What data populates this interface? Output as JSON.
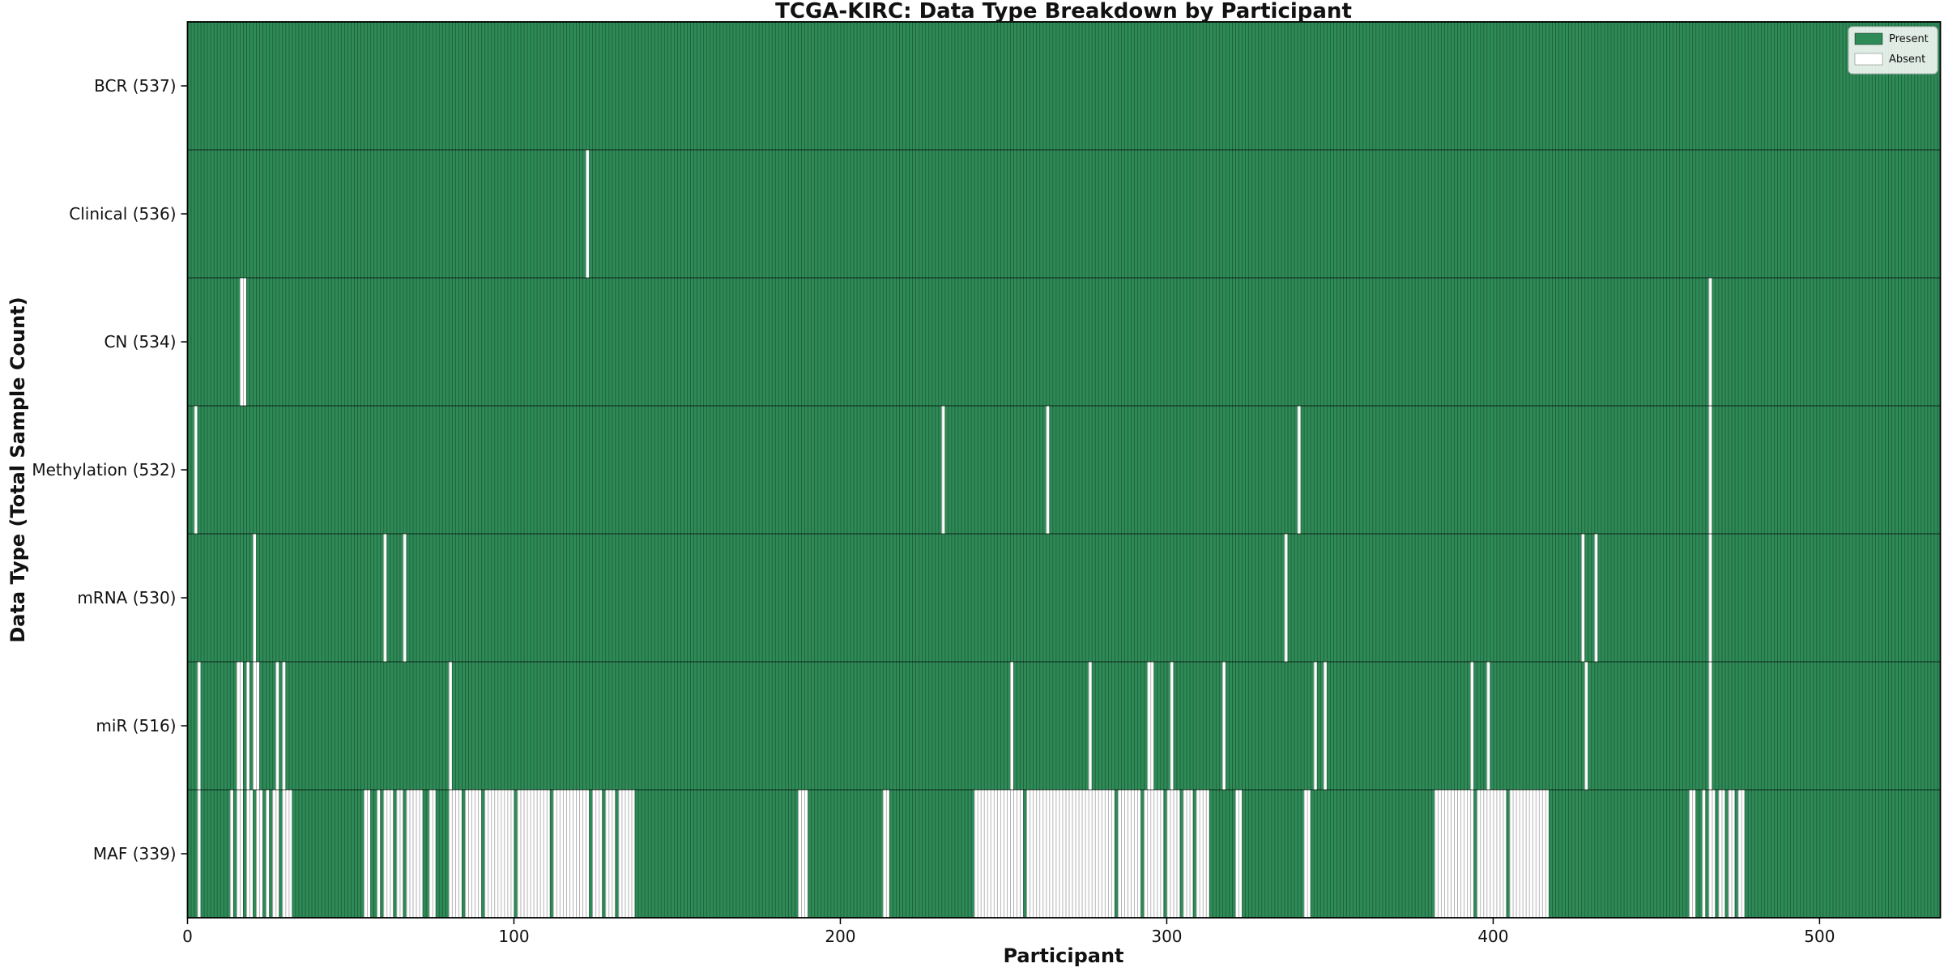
{
  "page": {
    "background": "#ffffff"
  },
  "chart_data": {
    "type": "heatmap",
    "title": "TCGA-KIRC: Data Type Breakdown by Participant",
    "xlabel": "Participant",
    "ylabel": "Data Type (Total Sample Count)",
    "x_ticks": [
      0,
      100,
      200,
      300,
      400,
      500
    ],
    "x_range": [
      0,
      537
    ],
    "n_participants": 537,
    "grid": false,
    "legend_position": "upper right",
    "legend": [
      {
        "label": "Present",
        "color": "#2e8b57"
      },
      {
        "label": "Absent",
        "color": "#ffffff"
      }
    ],
    "colors": {
      "present": "#2e8b57",
      "absent": "#ffffff",
      "cell_edge": "rgba(0,0,0,0.32)",
      "row_divider": "rgba(0,0,0,0.55)",
      "plot_border": "#000000",
      "legend_border": "#bbbbbb",
      "legend_background": "rgba(255,255,255,0.85)"
    },
    "rows": [
      {
        "name": "BCR",
        "label": "BCR (537)",
        "present_count": 537,
        "absent_count": 0,
        "absent_ranges": []
      },
      {
        "name": "Clinical",
        "label": "Clinical (536)",
        "present_count": 536,
        "absent_count": 1,
        "absent_ranges": [
          [
            122,
            122
          ]
        ]
      },
      {
        "name": "CN",
        "label": "CN (534)",
        "present_count": 534,
        "absent_count": 3,
        "absent_ranges": [
          [
            16,
            17
          ],
          [
            466,
            466
          ]
        ]
      },
      {
        "name": "Methylation",
        "label": "Methylation (532)",
        "present_count": 532,
        "absent_count": 5,
        "absent_ranges": [
          [
            2,
            2
          ],
          [
            231,
            231
          ],
          [
            263,
            263
          ],
          [
            340,
            340
          ],
          [
            466,
            466
          ]
        ]
      },
      {
        "name": "mRNA",
        "label": "mRNA (530)",
        "present_count": 530,
        "absent_count": 7,
        "absent_ranges": [
          [
            20,
            20
          ],
          [
            60,
            60
          ],
          [
            66,
            66
          ],
          [
            336,
            336
          ],
          [
            427,
            427
          ],
          [
            431,
            431
          ],
          [
            466,
            466
          ]
        ]
      },
      {
        "name": "miR",
        "label": "miR (516)",
        "present_count": 516,
        "absent_count": 21,
        "absent_ranges": [
          [
            3,
            3
          ],
          [
            15,
            16
          ],
          [
            18,
            18
          ],
          [
            20,
            21
          ],
          [
            27,
            27
          ],
          [
            29,
            29
          ],
          [
            80,
            80
          ],
          [
            252,
            252
          ],
          [
            276,
            276
          ],
          [
            294,
            295
          ],
          [
            301,
            301
          ],
          [
            317,
            317
          ],
          [
            345,
            345
          ],
          [
            348,
            348
          ],
          [
            393,
            393
          ],
          [
            398,
            398
          ],
          [
            428,
            428
          ],
          [
            466,
            466
          ]
        ]
      },
      {
        "name": "MAF",
        "label": "MAF (339)",
        "present_count": 339,
        "absent_count": 198,
        "absent_ranges": [
          [
            3,
            3
          ],
          [
            13,
            13
          ],
          [
            15,
            16
          ],
          [
            18,
            19
          ],
          [
            21,
            22
          ],
          [
            24,
            24
          ],
          [
            26,
            27
          ],
          [
            29,
            31
          ],
          [
            54,
            55
          ],
          [
            58,
            58
          ],
          [
            60,
            62
          ],
          [
            64,
            65
          ],
          [
            67,
            71
          ],
          [
            74,
            75
          ],
          [
            80,
            83
          ],
          [
            85,
            89
          ],
          [
            91,
            99
          ],
          [
            101,
            110
          ],
          [
            112,
            122
          ],
          [
            124,
            126
          ],
          [
            128,
            130
          ],
          [
            132,
            136
          ],
          [
            187,
            189
          ],
          [
            213,
            214
          ],
          [
            241,
            255
          ],
          [
            257,
            283
          ],
          [
            285,
            291
          ],
          [
            293,
            298
          ],
          [
            300,
            303
          ],
          [
            305,
            307
          ],
          [
            309,
            312
          ],
          [
            321,
            322
          ],
          [
            342,
            343
          ],
          [
            382,
            393
          ],
          [
            395,
            403
          ],
          [
            405,
            416
          ],
          [
            460,
            461
          ],
          [
            464,
            464
          ],
          [
            466,
            467
          ],
          [
            469,
            470
          ],
          [
            472,
            473
          ],
          [
            475,
            476
          ]
        ]
      }
    ]
  }
}
